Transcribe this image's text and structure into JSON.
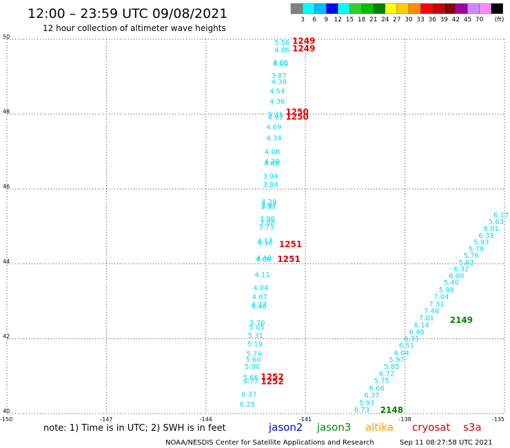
{
  "header": {
    "title": "12:00 – 23:59 UTC 09/08/2021",
    "subtitle": "12 hour collection of altimeter wave heights"
  },
  "color_scale": {
    "labels": [
      "3",
      "6",
      "9",
      "12",
      "15",
      "18",
      "21",
      "24",
      "27",
      "30",
      "33",
      "36",
      "39",
      "42",
      "45",
      "70"
    ],
    "colors": [
      "#808080",
      "#00ffff",
      "#00bfff",
      "#0000ff",
      "#00ffff",
      "#32cd32",
      "#00c000",
      "#008000",
      "#ffff00",
      "#ffcc00",
      "#ff8c00",
      "#ff0000",
      "#cc0000",
      "#8b0000",
      "#a000a0",
      "#cc88ff",
      "#ff88ff",
      "#000000"
    ],
    "unit": "(ft)"
  },
  "footer": {
    "note": "note:  1) Time is in UTC;  2) SWH is in feet",
    "credit": "NOAA/NESDIS Center for Satellite Applications and Research",
    "timestamp": "Sep 11 08:27:58 UTC 2021"
  },
  "legend": [
    {
      "name": "jason2",
      "color": "#0000dd"
    },
    {
      "name": "jason3",
      "color": "#008800"
    },
    {
      "name": "altika",
      "color": "#ff9900"
    },
    {
      "name": "cryosat",
      "color": "#dd0000"
    },
    {
      "name": "s3a",
      "color": "#cc0000"
    }
  ],
  "chart_data": {
    "type": "scatter",
    "xlim": [
      -150,
      -135
    ],
    "ylim": [
      40,
      50
    ],
    "x_ticks": [
      "-150",
      "-147",
      "-144",
      "-141",
      "-138",
      "-135"
    ],
    "x_tick_values": [
      -150,
      -147,
      -144,
      -141,
      -138,
      -135
    ],
    "y_ticks": [
      "40",
      "42",
      "44",
      "46",
      "48",
      "50"
    ],
    "y_tick_values": [
      40,
      42,
      44,
      46,
      48,
      50
    ],
    "grid": true,
    "point_color": "#00d8ee",
    "series": [
      {
        "points": [
          {
            "lon": -141.7,
            "lat": 49.85,
            "v": "5.56"
          },
          {
            "lon": -141.7,
            "lat": 49.65,
            "v": "4.86"
          },
          {
            "lon": -141.75,
            "lat": 49.32,
            "v": "4.66"
          },
          {
            "lon": -141.75,
            "lat": 49.28,
            "v": "4.00"
          },
          {
            "lon": -141.8,
            "lat": 48.97,
            "v": "3.87"
          },
          {
            "lon": -141.8,
            "lat": 48.8,
            "v": "4.39"
          },
          {
            "lon": -141.85,
            "lat": 48.55,
            "v": "4.54"
          },
          {
            "lon": -141.85,
            "lat": 48.28,
            "v": "4.36"
          },
          {
            "lon": -141.9,
            "lat": 47.93,
            "v": "5.31"
          },
          {
            "lon": -141.9,
            "lat": 47.85,
            "v": "4.92"
          },
          {
            "lon": -141.95,
            "lat": 47.6,
            "v": "4.69"
          },
          {
            "lon": -141.95,
            "lat": 47.3,
            "v": "4.34"
          },
          {
            "lon": -142.0,
            "lat": 46.93,
            "v": "4.08"
          },
          {
            "lon": -142.0,
            "lat": 46.68,
            "v": "4.20"
          },
          {
            "lon": -142.02,
            "lat": 46.62,
            "v": "4.08"
          },
          {
            "lon": -142.05,
            "lat": 46.28,
            "v": "3.94"
          },
          {
            "lon": -142.05,
            "lat": 46.06,
            "v": "3.84"
          },
          {
            "lon": -142.1,
            "lat": 45.6,
            "v": "4.39"
          },
          {
            "lon": -142.1,
            "lat": 45.5,
            "v": "3.97"
          },
          {
            "lon": -142.12,
            "lat": 45.46,
            "v": "3.91"
          },
          {
            "lon": -142.15,
            "lat": 45.15,
            "v": "3.96"
          },
          {
            "lon": -142.15,
            "lat": 45.05,
            "v": "3.88"
          },
          {
            "lon": -142.18,
            "lat": 44.91,
            "v": "3.73"
          },
          {
            "lon": -142.22,
            "lat": 44.55,
            "v": "4.17"
          },
          {
            "lon": -142.22,
            "lat": 44.5,
            "v": "4.10"
          },
          {
            "lon": -142.25,
            "lat": 44.1,
            "v": "4.48"
          },
          {
            "lon": -142.27,
            "lat": 44.05,
            "v": "4.06"
          },
          {
            "lon": -142.3,
            "lat": 43.65,
            "v": "4.11"
          },
          {
            "lon": -142.35,
            "lat": 43.3,
            "v": "4.04"
          },
          {
            "lon": -142.38,
            "lat": 43.06,
            "v": "4.67"
          },
          {
            "lon": -142.4,
            "lat": 42.85,
            "v": "4.27"
          },
          {
            "lon": -142.4,
            "lat": 42.8,
            "v": "4.40"
          },
          {
            "lon": -142.45,
            "lat": 42.37,
            "v": "5.70"
          },
          {
            "lon": -142.47,
            "lat": 42.25,
            "v": "5.05"
          },
          {
            "lon": -142.5,
            "lat": 42.03,
            "v": "5.31"
          },
          {
            "lon": -142.52,
            "lat": 41.8,
            "v": "5.19"
          },
          {
            "lon": -142.55,
            "lat": 41.54,
            "v": "5.74"
          },
          {
            "lon": -142.57,
            "lat": 41.38,
            "v": "5.60"
          },
          {
            "lon": -142.6,
            "lat": 41.2,
            "v": "5.90"
          },
          {
            "lon": -142.65,
            "lat": 40.9,
            "v": "5.66"
          },
          {
            "lon": -142.65,
            "lat": 40.8,
            "v": "4.77"
          },
          {
            "lon": -142.7,
            "lat": 40.45,
            "v": "6.37"
          },
          {
            "lon": -142.75,
            "lat": 40.18,
            "v": "6.25"
          }
        ]
      },
      {
        "points": [
          {
            "lon": -139.3,
            "lat": 40.04,
            "v": "6.73"
          },
          {
            "lon": -139.15,
            "lat": 40.22,
            "v": "5.93"
          },
          {
            "lon": -139.0,
            "lat": 40.42,
            "v": "6.37"
          },
          {
            "lon": -138.85,
            "lat": 40.62,
            "v": "6.66"
          },
          {
            "lon": -138.7,
            "lat": 40.82,
            "v": "5.75"
          },
          {
            "lon": -138.55,
            "lat": 41.0,
            "v": "6.72"
          },
          {
            "lon": -138.4,
            "lat": 41.2,
            "v": "5.85"
          },
          {
            "lon": -138.25,
            "lat": 41.38,
            "v": "5.97"
          },
          {
            "lon": -138.1,
            "lat": 41.56,
            "v": "6.04"
          },
          {
            "lon": -137.95,
            "lat": 41.76,
            "v": "6.51"
          },
          {
            "lon": -137.8,
            "lat": 41.94,
            "v": "6.31"
          },
          {
            "lon": -137.65,
            "lat": 42.12,
            "v": "6.48"
          },
          {
            "lon": -137.5,
            "lat": 42.3,
            "v": "6.14"
          },
          {
            "lon": -137.35,
            "lat": 42.5,
            "v": "7.01"
          },
          {
            "lon": -137.2,
            "lat": 42.68,
            "v": "7.46"
          },
          {
            "lon": -137.05,
            "lat": 42.86,
            "v": "7.31"
          },
          {
            "lon": -136.9,
            "lat": 43.06,
            "v": "7.04"
          },
          {
            "lon": -136.75,
            "lat": 43.24,
            "v": "5.98"
          },
          {
            "lon": -136.6,
            "lat": 43.44,
            "v": "5.40"
          },
          {
            "lon": -136.45,
            "lat": 43.62,
            "v": "6.00"
          },
          {
            "lon": -136.3,
            "lat": 43.8,
            "v": "6.32"
          },
          {
            "lon": -136.15,
            "lat": 43.98,
            "v": "5.63"
          },
          {
            "lon": -136.0,
            "lat": 44.16,
            "v": "5.76"
          },
          {
            "lon": -135.85,
            "lat": 44.34,
            "v": "5.78"
          },
          {
            "lon": -135.7,
            "lat": 44.52,
            "v": "5.93"
          },
          {
            "lon": -135.55,
            "lat": 44.7,
            "v": "6.33"
          },
          {
            "lon": -135.4,
            "lat": 44.88,
            "v": "6.01"
          },
          {
            "lon": -135.25,
            "lat": 45.06,
            "v": "5.63"
          },
          {
            "lon": -135.1,
            "lat": 45.24,
            "v": "6.17"
          }
        ]
      }
    ],
    "time_labels": [
      {
        "lon": -141.05,
        "lat": 49.88,
        "t": "1249",
        "color": "#dd0000"
      },
      {
        "lon": -141.05,
        "lat": 49.68,
        "t": "1249",
        "color": "#dd0000"
      },
      {
        "lon": -141.25,
        "lat": 47.98,
        "t": "1250",
        "color": "#dd0000"
      },
      {
        "lon": -141.25,
        "lat": 47.85,
        "t": "1250",
        "color": "#dd0000"
      },
      {
        "lon": -141.45,
        "lat": 44.45,
        "t": "1251",
        "color": "#dd0000"
      },
      {
        "lon": -141.5,
        "lat": 44.05,
        "t": "1251",
        "color": "#dd0000"
      },
      {
        "lon": -142.0,
        "lat": 40.9,
        "t": "1252",
        "color": "#dd0000"
      },
      {
        "lon": -142.0,
        "lat": 40.78,
        "t": "1252",
        "color": "#dd0000"
      },
      {
        "lon": -138.4,
        "lat": 40.02,
        "t": "2148",
        "color": "#008000"
      },
      {
        "lon": -136.3,
        "lat": 42.42,
        "t": "2149",
        "color": "#008000"
      }
    ]
  }
}
